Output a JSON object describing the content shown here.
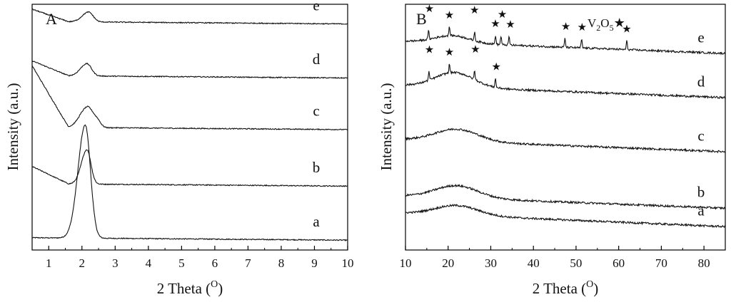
{
  "chart_data": [
    {
      "type": "line",
      "panel_label": "A",
      "xlabel_main": "2 Theta (",
      "xlabel_sup": "O",
      "xlabel_close": ")",
      "ylabel": "Intensity (a.u.)",
      "xlim": [
        0.5,
        10
      ],
      "xticks": [
        "1",
        "2",
        "3",
        "4",
        "5",
        "6",
        "7",
        "8",
        "9",
        "10"
      ],
      "series": [
        {
          "name": "a",
          "baseline": 0.05,
          "tail": -0.01,
          "peaks": [
            {
              "x": 2.1,
              "h": 0.46,
              "w": 0.17
            }
          ],
          "low_x_slope": 0.0
        },
        {
          "name": "b",
          "baseline": 0.27,
          "tail": -0.01,
          "peaks": [
            {
              "x": 2.15,
              "h": 0.14,
              "w": 0.13
            }
          ],
          "low_x_slope": 0.07
        },
        {
          "name": "c",
          "baseline": 0.5,
          "tail": -0.01,
          "peaks": [
            {
              "x": 2.15,
              "h": 0.08,
              "w": 0.17
            },
            {
              "x": 2.45,
              "h": 0.03,
              "w": 0.12
            }
          ],
          "low_x_slope": 0.25
        },
        {
          "name": "d",
          "baseline": 0.71,
          "tail": -0.01,
          "peaks": [
            {
              "x": 2.15,
              "h": 0.05,
              "w": 0.15
            }
          ],
          "low_x_slope": 0.06
        },
        {
          "name": "e",
          "baseline": 0.93,
          "tail": -0.01,
          "peaks": [
            {
              "x": 2.2,
              "h": 0.04,
              "w": 0.15
            }
          ],
          "low_x_slope": 0.05
        }
      ]
    },
    {
      "type": "line",
      "panel_label": "B",
      "xlabel_main": "2 Theta (",
      "xlabel_sup": "O",
      "xlabel_close": ")",
      "ylabel": "Intensity (a.u.)",
      "xlim": [
        10,
        85
      ],
      "xticks": [
        "10",
        "20",
        "30",
        "40",
        "50",
        "60",
        "70",
        "80"
      ],
      "legend_text": "V",
      "legend_sub1": "2",
      "legend_mid": "O",
      "legend_sub2": "5",
      "star": "★",
      "series": [
        {
          "name": "a",
          "baseline": 0.15,
          "tail": -0.055,
          "hump": {
            "x": 22,
            "h": 0.04,
            "w": 5
          },
          "sharp": []
        },
        {
          "name": "b",
          "baseline": 0.22,
          "tail": -0.05,
          "hump": {
            "x": 22,
            "h": 0.05,
            "w": 5
          },
          "sharp": []
        },
        {
          "name": "c",
          "baseline": 0.45,
          "tail": -0.05,
          "hump": {
            "x": 22,
            "h": 0.05,
            "w": 5
          },
          "sharp": []
        },
        {
          "name": "d",
          "baseline": 0.67,
          "tail": -0.05,
          "hump": {
            "x": 21.5,
            "h": 0.06,
            "w": 4.5
          },
          "sharp": [
            15.5,
            20.3,
            26.2,
            31.1
          ]
        },
        {
          "name": "e",
          "baseline": 0.85,
          "tail": -0.05,
          "hump": {
            "x": 21,
            "h": 0.03,
            "w": 4
          },
          "sharp": [
            15.4,
            20.3,
            26.2,
            31.1,
            32.4,
            34.3,
            47.4,
            51.3,
            61.9
          ]
        }
      ],
      "stars_e": [
        15.6,
        20.3,
        26.2,
        31.1,
        32.7,
        34.6,
        47.6,
        51.4,
        61.9
      ],
      "stars_d": [
        15.6,
        20.3,
        26.4,
        31.3
      ]
    }
  ]
}
